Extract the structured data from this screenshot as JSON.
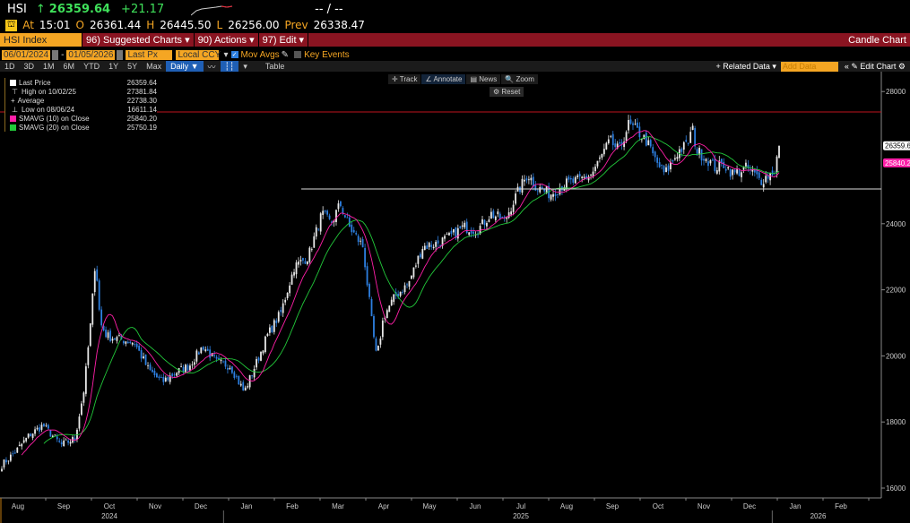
{
  "quote": {
    "ticker": "HSI",
    "arrow": "↑",
    "last": "26359.64",
    "change": "+21.17",
    "bidask": "-- / --",
    "at_label": "At",
    "time": "15:01",
    "o_label": "O",
    "open": "26361.44",
    "h_label": "H",
    "high": "26445.50",
    "l_label": "L",
    "low": "26256.00",
    "prev_label": "Prev",
    "prev": "26338.47"
  },
  "menubar": {
    "security": "HSI Index",
    "suggested": "96) Suggested Charts ▾",
    "actions": "90) Actions ▾",
    "edit": "97) Edit ▾",
    "chart_type": "Candle Chart"
  },
  "controls": {
    "start_date": "06/01/2024",
    "end_date": "01/05/2026",
    "dash": "-",
    "field": "Last Px",
    "currency": "Local CCY",
    "mov_avgs": "Mov Avgs",
    "key_events": "Key Events"
  },
  "periods": [
    "1D",
    "3D",
    "1M",
    "6M",
    "YTD",
    "1Y",
    "5Y",
    "Max"
  ],
  "frequency": "Daily ▼",
  "table_label": "Table",
  "right_tools": {
    "related": "+ Related Data ▾",
    "add_data_placeholder": "Add Data",
    "edit_chart": "« ✎ Edit Chart ⚙"
  },
  "chart_tools": {
    "track": "✛ Track",
    "annotate": "∠ Annotate",
    "news": "▤ News",
    "zoom": "🔍 Zoom",
    "reset": "⚙ Reset"
  },
  "legend": [
    {
      "label": "Last Price",
      "value": "26359.64",
      "color": "#ffffff"
    },
    {
      "label": "High on 10/02/25",
      "value": "27381.84"
    },
    {
      "label": "Average",
      "value": "22738.30"
    },
    {
      "label": "Low on 08/06/24",
      "value": "16611.14"
    },
    {
      "label": "SMAVG (10)  on Close",
      "value": "25840.20",
      "color": "#ff1fa8"
    },
    {
      "label": "SMAVG (20)  on Close",
      "value": "25750.19",
      "color": "#22c83a"
    }
  ],
  "chart_data": {
    "type": "candlestick",
    "title": "HSI Index",
    "ylim": [
      15500,
      28700
    ],
    "y_ticks": [
      16000,
      18000,
      20000,
      22000,
      24000,
      28000
    ],
    "x_months": [
      "Aug",
      "Sep",
      "Oct",
      "Nov",
      "Dec",
      "Jan",
      "Feb",
      "Mar",
      "Apr",
      "May",
      "Jun",
      "Jul",
      "Aug",
      "Sep",
      "Oct",
      "Nov",
      "Dec",
      "Jan",
      "Feb"
    ],
    "x_years": [
      {
        "label": "2024",
        "month_index": 2
      },
      {
        "label": "2025",
        "month_index": 11
      },
      {
        "label": "2026",
        "month_index": 17.5
      }
    ],
    "waypoints_month_close": [
      [
        0,
        16700
      ],
      [
        0.3,
        17100
      ],
      [
        0.6,
        17600
      ],
      [
        0.9,
        17900
      ],
      [
        1.3,
        17300
      ],
      [
        1.6,
        17500
      ],
      [
        1.8,
        19000
      ],
      [
        1.95,
        21100
      ],
      [
        2.05,
        23000
      ],
      [
        2.15,
        21000
      ],
      [
        2.3,
        20600
      ],
      [
        2.6,
        20500
      ],
      [
        2.9,
        20400
      ],
      [
        3.2,
        19600
      ],
      [
        3.5,
        19200
      ],
      [
        3.8,
        19500
      ],
      [
        4.1,
        19700
      ],
      [
        4.4,
        20300
      ],
      [
        4.7,
        19800
      ],
      [
        5.0,
        19700
      ],
      [
        5.3,
        18900
      ],
      [
        5.6,
        19900
      ],
      [
        5.8,
        20600
      ],
      [
        6.1,
        21300
      ],
      [
        6.4,
        22700
      ],
      [
        6.7,
        23000
      ],
      [
        7.0,
        24300
      ],
      [
        7.2,
        24000
      ],
      [
        7.4,
        24600
      ],
      [
        7.6,
        23900
      ],
      [
        7.9,
        23300
      ],
      [
        8.1,
        20900
      ],
      [
        8.2,
        19900
      ],
      [
        8.35,
        21200
      ],
      [
        8.6,
        21800
      ],
      [
        8.9,
        22200
      ],
      [
        9.2,
        23300
      ],
      [
        9.5,
        23400
      ],
      [
        9.8,
        23600
      ],
      [
        10.1,
        23900
      ],
      [
        10.4,
        23800
      ],
      [
        10.7,
        24300
      ],
      [
        11.0,
        24100
      ],
      [
        11.3,
        25000
      ],
      [
        11.5,
        25500
      ],
      [
        11.7,
        25100
      ],
      [
        12.0,
        24900
      ],
      [
        12.3,
        25200
      ],
      [
        12.6,
        25300
      ],
      [
        12.9,
        25500
      ],
      [
        13.1,
        26000
      ],
      [
        13.3,
        26500
      ],
      [
        13.5,
        26200
      ],
      [
        13.7,
        27000
      ],
      [
        13.9,
        26800
      ],
      [
        14.1,
        26500
      ],
      [
        14.3,
        25900
      ],
      [
        14.5,
        25500
      ],
      [
        14.8,
        26200
      ],
      [
        15.0,
        26400
      ],
      [
        15.1,
        26900
      ],
      [
        15.2,
        26200
      ],
      [
        15.4,
        26000
      ],
      [
        15.6,
        25700
      ],
      [
        15.8,
        25800
      ],
      [
        16.0,
        25500
      ],
      [
        16.3,
        25700
      ],
      [
        16.6,
        25300
      ],
      [
        16.9,
        25600
      ],
      [
        17.0,
        26359.64
      ]
    ],
    "hlines": [
      {
        "value": 27381.84,
        "color": "#c0141e"
      },
      {
        "value": 25050,
        "color": "#dddddd",
        "from_month": 6.55
      }
    ],
    "last_price_tag": "26359.64",
    "sma10_tag": "25840.20",
    "up_color": "#e8e8e8",
    "down_color": "#2d7fe0",
    "sma10_color": "#ff1fa8",
    "sma20_color": "#22c83a"
  }
}
